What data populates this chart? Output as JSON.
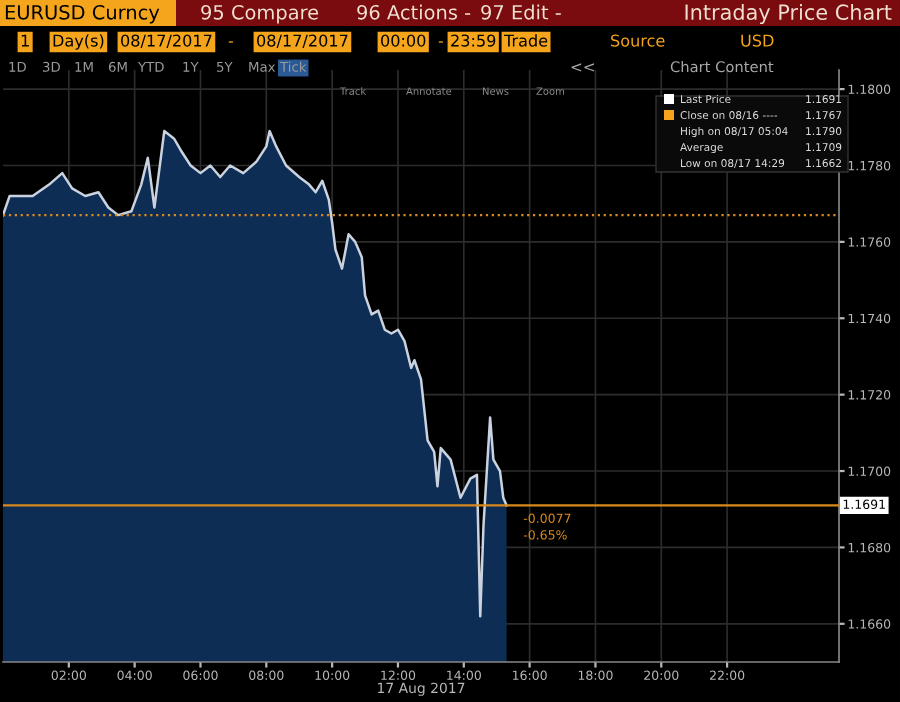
{
  "chart_data": {
    "type": "area",
    "title": "Intraday Price Chart",
    "xlabel": "17 Aug 2017",
    "x": [
      0,
      0.2,
      0.9,
      1.4,
      1.8,
      2.1,
      2.5,
      2.9,
      3.2,
      3.5,
      3.9,
      4.2,
      4.4,
      4.6,
      4.9,
      5.2,
      5.4,
      5.7,
      6.0,
      6.3,
      6.6,
      6.9,
      7.3,
      7.7,
      8.0,
      8.1,
      8.3,
      8.6,
      9.0,
      9.3,
      9.5,
      9.7,
      9.9,
      10.0,
      10.1,
      10.3,
      10.5,
      10.7,
      10.9,
      11.0,
      11.2,
      11.4,
      11.6,
      11.8,
      12.0,
      12.2,
      12.4,
      12.5,
      12.7,
      12.9,
      13.1,
      13.2,
      13.3,
      13.6,
      13.9,
      14.2,
      14.4,
      14.5,
      14.6,
      14.8,
      14.9,
      15.1,
      15.2,
      15.3
    ],
    "series": [
      {
        "color": "#0e2d55",
        "values": [
          1.1767,
          1.1772,
          1.1772,
          1.1775,
          1.1778,
          1.1774,
          1.1772,
          1.1773,
          1.1769,
          1.1767,
          1.1768,
          1.1775,
          1.1782,
          1.1769,
          1.1789,
          1.1787,
          1.1784,
          1.178,
          1.1778,
          1.178,
          1.1777,
          1.178,
          1.1778,
          1.1781,
          1.1785,
          1.1789,
          1.1785,
          1.178,
          1.1777,
          1.1775,
          1.1773,
          1.1776,
          1.1771,
          1.1765,
          1.1758,
          1.1753,
          1.1762,
          1.176,
          1.1756,
          1.1746,
          1.1741,
          1.1742,
          1.1737,
          1.1736,
          1.1737,
          1.1734,
          1.1727,
          1.1729,
          1.1724,
          1.1708,
          1.1705,
          1.1696,
          1.1706,
          1.1703,
          1.1693,
          1.1698,
          1.1699,
          1.1662,
          1.1686,
          1.1714,
          1.1703,
          1.17,
          1.1693,
          1.1691
        ]
      }
    ],
    "xlim": [
      0,
      25.4
    ],
    "ylim": [
      1.165,
      1.1805
    ],
    "xticks": [
      {
        "value": 2,
        "label": "02:00"
      },
      {
        "value": 4,
        "label": "04:00"
      },
      {
        "value": 6,
        "label": "06:00"
      },
      {
        "value": 8,
        "label": "08:00"
      },
      {
        "value": 10,
        "label": "10:00"
      },
      {
        "value": 12,
        "label": "12:00"
      },
      {
        "value": 14,
        "label": "14:00"
      },
      {
        "value": 16,
        "label": "16:00"
      },
      {
        "value": 18,
        "label": "18:00"
      },
      {
        "value": 20,
        "label": "20:00"
      },
      {
        "value": 22,
        "label": "22:00"
      }
    ],
    "yticks": [
      {
        "value": 1.166,
        "label": "1.1660"
      },
      {
        "value": 1.168,
        "label": "1.1680"
      },
      {
        "value": 1.17,
        "label": "1.1700"
      },
      {
        "value": 1.172,
        "label": "1.1720"
      },
      {
        "value": 1.174,
        "label": "1.1740"
      },
      {
        "value": 1.176,
        "label": "1.1760"
      },
      {
        "value": 1.178,
        "label": "1.1780"
      },
      {
        "value": 1.18,
        "label": "1.1800"
      }
    ],
    "grid": true,
    "ref_lines": [
      {
        "axis": "y",
        "value": 1.1767,
        "color": "#d98a1c",
        "line_style": "dotted"
      },
      {
        "axis": "y",
        "value": 1.1691,
        "label": "1.1691",
        "color": "#d98a1c",
        "line_style": "solid"
      }
    ],
    "annotations": [
      {
        "text": "-0.0077",
        "x": 15.3,
        "y": 1.1691
      },
      {
        "text": "-0.65%",
        "x": 15.3,
        "y": 1.1691
      },
      "EURUSD Curncy",
      "95 Compare",
      "96 Actions -",
      "97 Edit -",
      "1",
      "Day(s)",
      "08/17/2017",
      "-",
      "08/17/2017",
      "00:00",
      "-",
      "23:59",
      "Trade",
      "Source",
      "USD",
      "1D",
      "3D",
      "1M",
      "6M",
      "YTD",
      "1Y",
      "5Y",
      "Max",
      "Tick",
      "Track",
      "Annotate",
      "News",
      "Zoom",
      "<<",
      "Chart Content",
      "Last Price",
      "1.1691",
      "Close on 08/16 ----",
      "1.1767",
      "High on 08/17 05:04",
      "1.1790",
      "Average",
      "1.1709",
      "Low on 08/17 14:29",
      "1.1662"
    ]
  }
}
